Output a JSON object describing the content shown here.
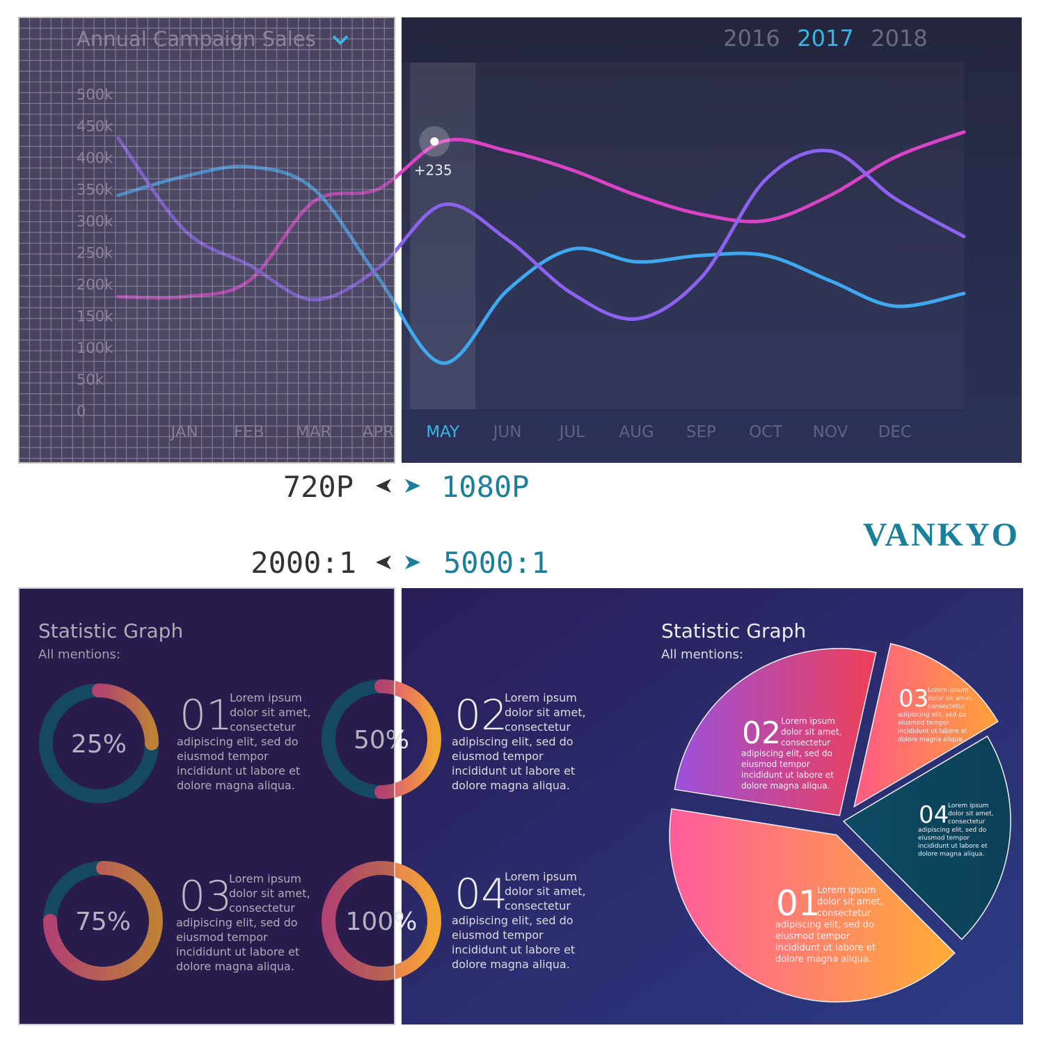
{
  "chart_data": [
    {
      "type": "line",
      "title": "Annual Campaign Sales",
      "years": [
        "2016",
        "2017",
        "2018"
      ],
      "selected_year": "2017",
      "year_color": "#6a6a82",
      "selected_color": "#38b6e6",
      "categories": [
        null,
        "JAN",
        "FEB",
        "MAR",
        "APR",
        "MAY",
        "JUN",
        "JUL",
        "AUG",
        "SEP",
        "OCT",
        "NOV",
        "DEC",
        null
      ],
      "series": [
        {
          "color": "#d943c6",
          "values": [
            180000,
            180000,
            205000,
            330000,
            350000,
            425000,
            410000,
            380000,
            340000,
            310000,
            300000,
            340000,
            400000,
            440000
          ]
        },
        {
          "color": "#3fa9f0",
          "values": [
            340000,
            370000,
            385000,
            350000,
            210000,
            75000,
            190000,
            255000,
            235000,
            245000,
            245000,
            205000,
            165000,
            185000
          ]
        },
        {
          "color": "#8c62f0",
          "values": [
            430000,
            285000,
            230000,
            175000,
            225000,
            325000,
            270000,
            185000,
            145000,
            210000,
            365000,
            410000,
            335000,
            275000
          ]
        }
      ],
      "ylim": [
        0,
        500000
      ],
      "yticks": [
        {
          "value": 0,
          "label": "0"
        },
        {
          "value": 50000,
          "label": "50k"
        },
        {
          "value": 100000,
          "label": "100k"
        },
        {
          "value": 150000,
          "label": "150k"
        },
        {
          "value": 200000,
          "label": "200k"
        },
        {
          "value": 250000,
          "label": "250k"
        },
        {
          "value": 300000,
          "label": "300k"
        },
        {
          "value": 350000,
          "label": "350k"
        },
        {
          "value": 400000,
          "label": "400k"
        },
        {
          "value": 450000,
          "label": "450k"
        },
        {
          "value": 500000,
          "label": "500k"
        }
      ],
      "annotation": {
        "text": "+235",
        "category": "MAY"
      }
    },
    {
      "type": "pie",
      "title": "Statistic Graph",
      "subtitle": "All mentions:",
      "slices": [
        {
          "label": "01",
          "value": 40,
          "colors": [
            "#ff5c9c",
            "#ffad36"
          ],
          "text": [
            "Lorem ipsum",
            "dolor sit amet,",
            "consectetur",
            "adipiscing elit, sed do",
            "eiusmod tempor",
            "incididunt ut labore et",
            "dolore magna aliqua."
          ]
        },
        {
          "label": "02",
          "value": 26,
          "colors": [
            "#9a50da",
            "#ee3e58"
          ],
          "text": [
            "Lorem ipsum",
            "dolor sit amet,",
            "consectetur",
            "adipiscing elit, sed do",
            "eiusmod tempor",
            "incididunt ut labore et",
            "dolore magna aliqua."
          ]
        },
        {
          "label": "03",
          "value": 13,
          "colors": [
            "#ff5a86",
            "#ffa23a"
          ],
          "text": [
            "Lorem ipsum",
            "dolor sit amet,",
            "consectetur",
            "adipiscing elit, sed do",
            "eiusmod tempor",
            "incididunt ut labore et",
            "dolore magna aliqua."
          ]
        },
        {
          "label": "04",
          "value": 21,
          "colors": [
            "#0e4c64",
            "#0b3f58"
          ],
          "text": [
            "Lorem ipsum",
            "dolor sit amet,",
            "consectetur",
            "adipiscing elit, sed do",
            "eiusmod tempor",
            "incididunt ut labore et",
            "dolore magna aliqua."
          ]
        }
      ]
    }
  ],
  "donut_panel": {
    "title": "Statistic Graph",
    "subtitle": "All mentions:",
    "track_color": "#0f5a6c",
    "arc_colors": [
      "#e0507e",
      "#f0a432"
    ],
    "items": [
      {
        "number": "01",
        "value": 25,
        "value_label": "25%",
        "text": [
          "Lorem ipsum",
          "dolor sit amet,",
          "consectetur",
          "adipiscing elit, sed do",
          "eiusmod tempor",
          "incididunt ut labore et",
          "dolore magna aliqua."
        ]
      },
      {
        "number": "02",
        "value": 50,
        "value_label": "50%",
        "text": [
          "Lorem ipsum",
          "dolor sit amet,",
          "consectetur",
          "adipiscing elit, sed do",
          "eiusmod tempor",
          "incididunt ut labore et",
          "dolore magna aliqua."
        ]
      },
      {
        "number": "03",
        "value": 75,
        "value_label": "75%",
        "text": [
          "Lorem ipsum",
          "dolor sit amet,",
          "consectetur",
          "adipiscing elit, sed do",
          "eiusmod tempor",
          "incididunt ut labore et",
          "dolore magna aliqua."
        ]
      },
      {
        "number": "04",
        "value": 100,
        "value_label": "100%",
        "text": [
          "Lorem ipsum",
          "dolor sit amet,",
          "consectetur",
          "adipiscing elit, sed do",
          "eiusmod tempor",
          "incididunt ut labore et",
          "dolore magna aliqua."
        ]
      }
    ]
  },
  "comparison": {
    "resolution": {
      "before": "720P",
      "after": "1080P"
    },
    "contrast": {
      "before": "2000:1",
      "after": "5000:1"
    }
  },
  "brand": "VANKYO"
}
